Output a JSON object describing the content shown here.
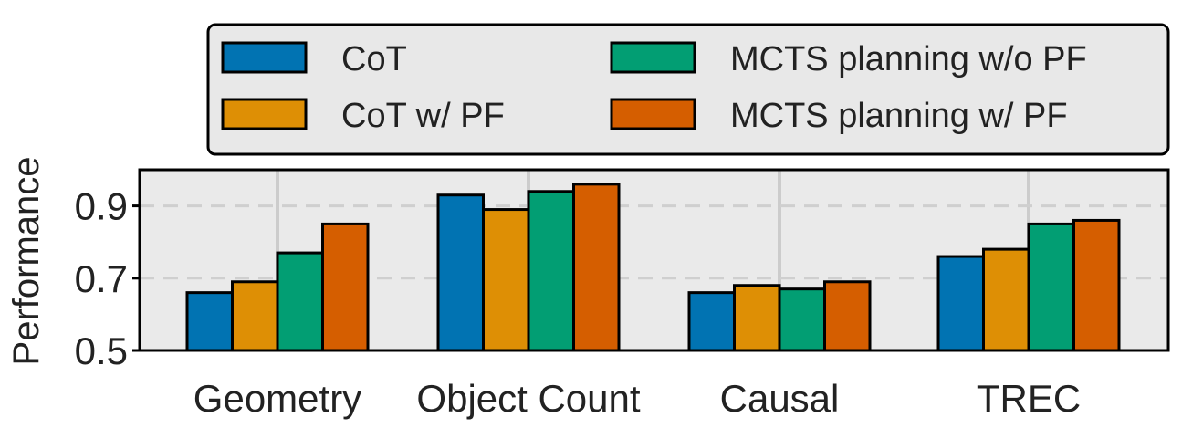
{
  "chart_data": {
    "type": "bar",
    "title": "",
    "xlabel": "",
    "ylabel": "Performance",
    "ylim": [
      0.5,
      1.0
    ],
    "yticks": [
      0.5,
      0.7,
      0.9
    ],
    "ytick_labels": [
      "0.5",
      "0.7",
      "0.9"
    ],
    "grid": true,
    "legend_position": "top-right, above plot",
    "categories": [
      "Geometry",
      "Object Count",
      "Causal",
      "TREC"
    ],
    "series": [
      {
        "name": "CoT",
        "color": "#0173b2",
        "values": [
          0.66,
          0.93,
          0.66,
          0.76
        ]
      },
      {
        "name": "CoT w/ PF",
        "color": "#de8f05",
        "values": [
          0.69,
          0.89,
          0.68,
          0.78
        ]
      },
      {
        "name": "MCTS planning w/o PF",
        "color": "#029e73",
        "values": [
          0.77,
          0.94,
          0.67,
          0.85
        ]
      },
      {
        "name": "MCTS planning w/ PF",
        "color": "#d55e00",
        "values": [
          0.85,
          0.96,
          0.69,
          0.86
        ]
      }
    ]
  }
}
